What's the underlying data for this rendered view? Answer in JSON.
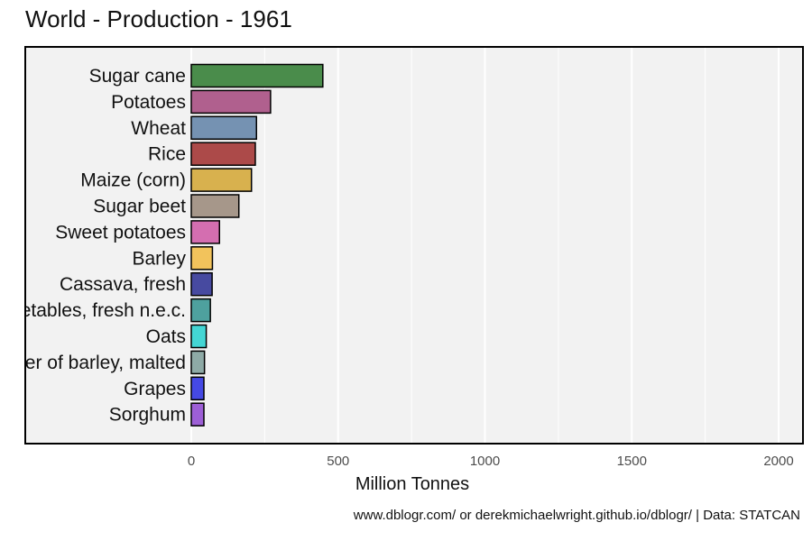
{
  "chart_data": {
    "type": "bar",
    "orientation": "horizontal",
    "title": "World - Production - 1961",
    "xlabel": "Million Tonnes",
    "ylabel": "",
    "caption": "www.dblogr.com/ or derekmichaelwright.github.io/dblogr/ | Data: STATCAN",
    "xlim": [
      0,
      2000
    ],
    "xticks": [
      0,
      500,
      1000,
      1500,
      2000
    ],
    "grid": true,
    "legend": "none",
    "categories": [
      "Sugar cane",
      "Potatoes",
      "Wheat",
      "Rice",
      "Maize (corn)",
      "Sugar beet",
      "Sweet potatoes",
      "Barley",
      "Cassava, fresh",
      "Vegetables, fresh n.e.c.",
      "Oats",
      "Beer of barley, malted",
      "Grapes",
      "Sorghum"
    ],
    "values": [
      448,
      270,
      222,
      218,
      205,
      162,
      96,
      72,
      71,
      65,
      51,
      45,
      43,
      43
    ],
    "colors": [
      "#4a8c4b",
      "#b0608e",
      "#7592b2",
      "#ac4a49",
      "#d8b14e",
      "#a6978a",
      "#d46eb0",
      "#f2c35c",
      "#474aa0",
      "#4ea19e",
      "#43d6d4",
      "#8eaaa6",
      "#4549e4",
      "#9d5fd6"
    ]
  }
}
